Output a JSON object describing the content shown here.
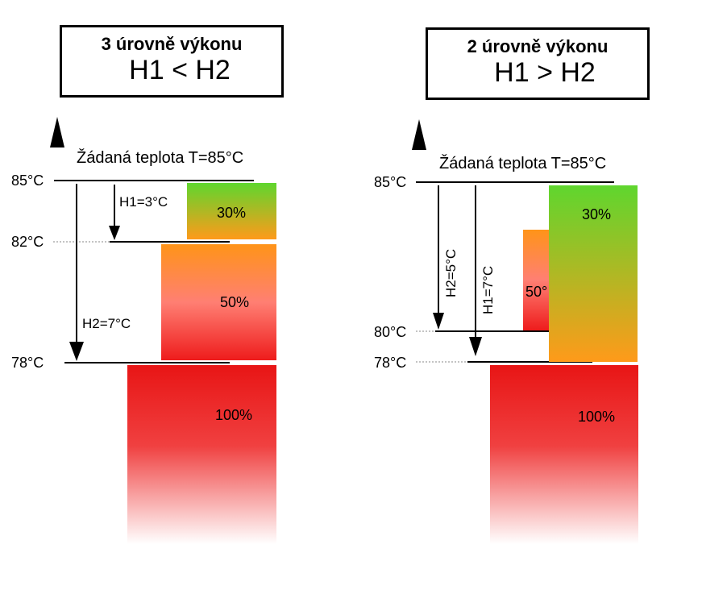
{
  "left_panel": {
    "title_line1": "3 úrovně výkonu",
    "title_line2": "H1 < H2",
    "setpoint": "Žádaná teplota T=85°C",
    "temp_85": "85°C",
    "temp_82": "82°C",
    "temp_78": "78°C",
    "h1_label": "H1=3°C",
    "h2_label": "H2=7°C",
    "level_30": "30%",
    "level_50": "50%",
    "level_100": "100%"
  },
  "right_panel": {
    "title_line1": "2 úrovně výkonu",
    "title_line2": "H1 > H2",
    "setpoint": "Žádaná teplota T=85°C",
    "temp_85": "85°C",
    "temp_80": "80°C",
    "temp_78": "78°C",
    "h2_label": "H2=5°C",
    "h1_label": "H1=7°C",
    "level_30": "30%",
    "level_50": "50°",
    "level_100": "100%"
  },
  "colors": {
    "green": "#5fd62e",
    "orange": "#ff9a1a",
    "red": "#e81515",
    "axis": "#000000",
    "dotted": "#888888"
  }
}
